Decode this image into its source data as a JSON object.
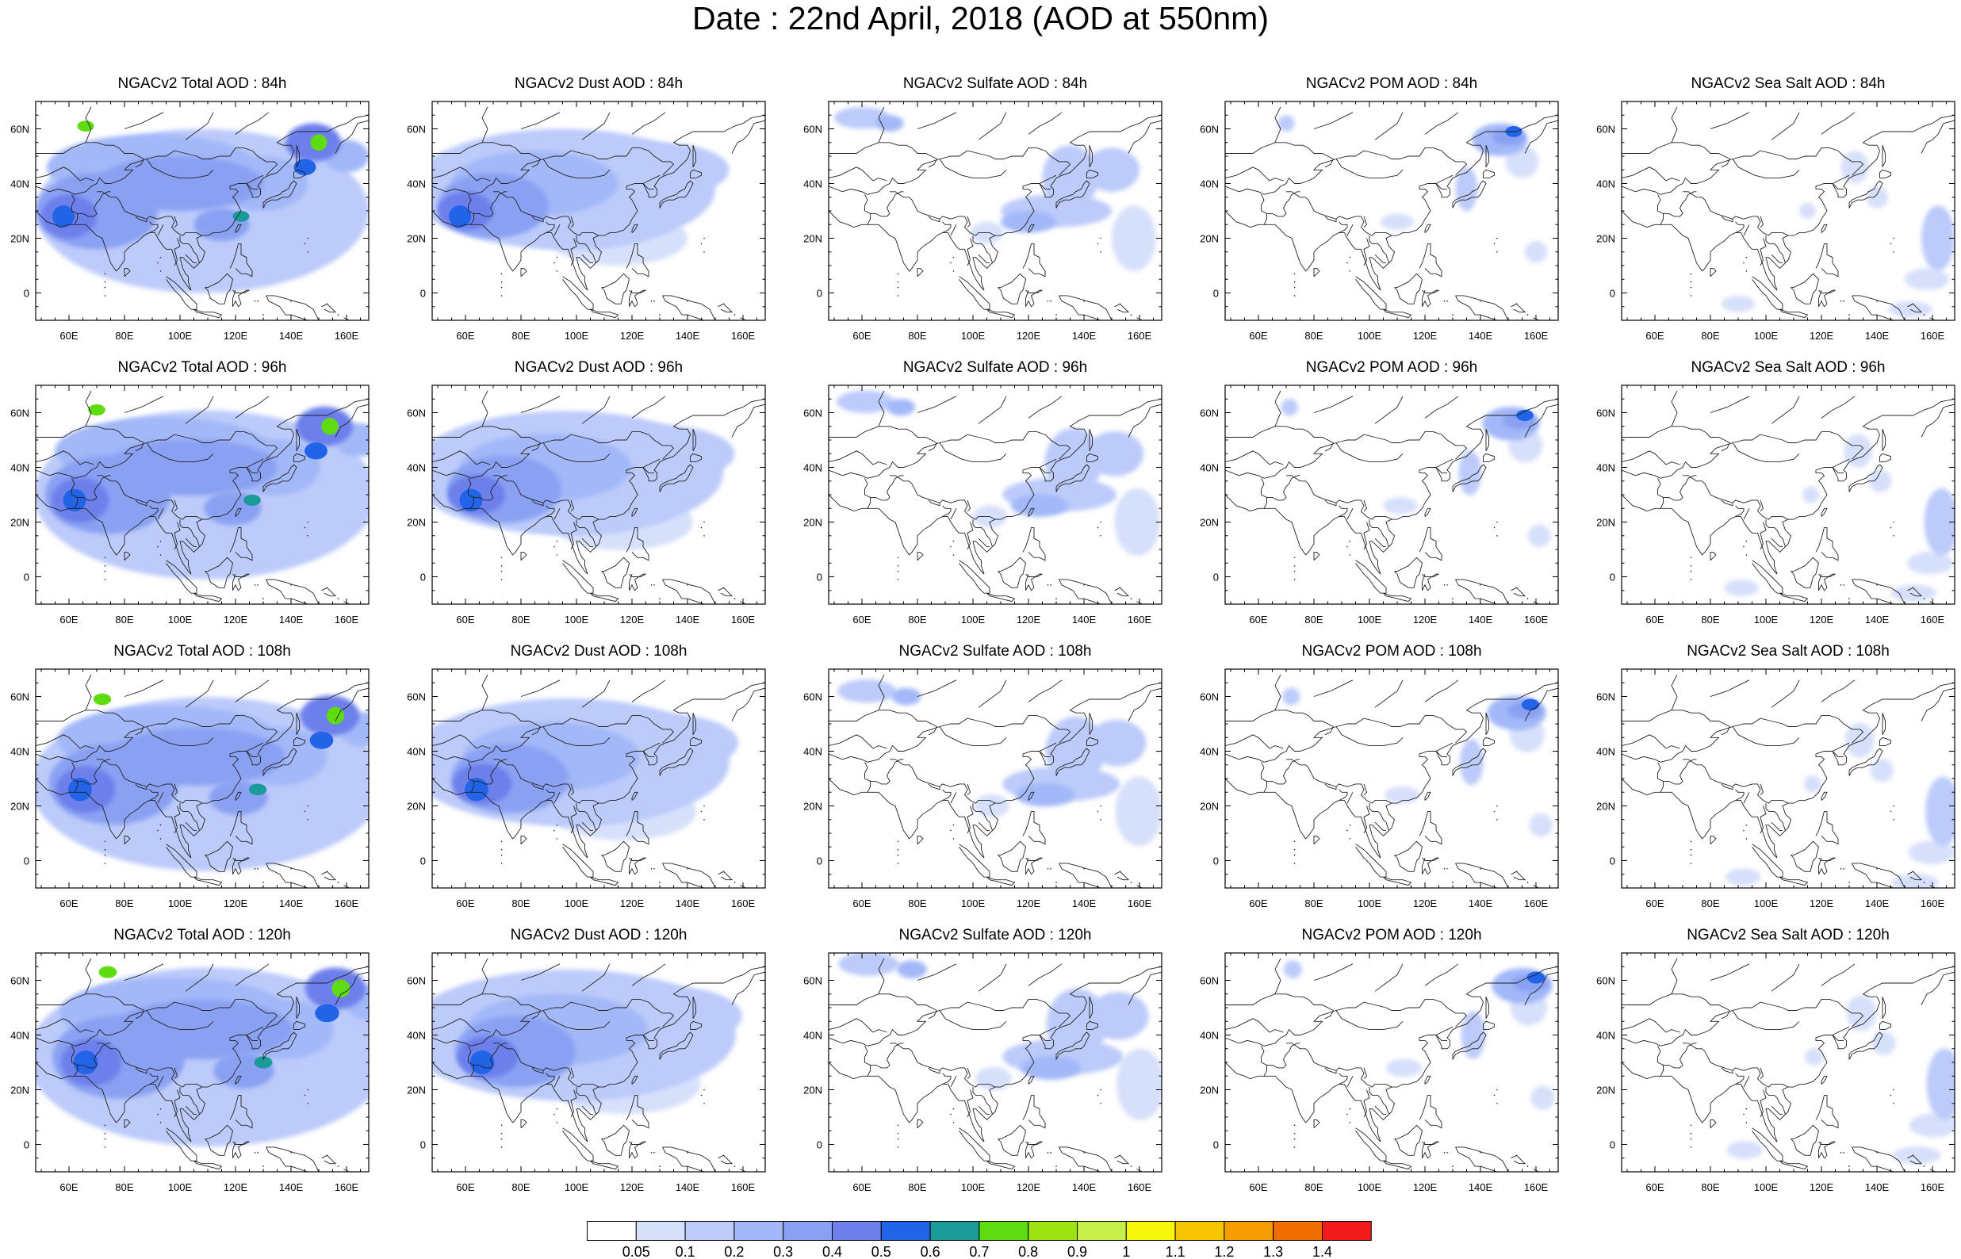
{
  "title": "Date : 22nd April, 2018 (AOD at 550nm)",
  "map_grid": {
    "lon_range": [
      48,
      168
    ],
    "lat_range": [
      -10,
      70
    ],
    "lon_ticks": [
      "60E",
      "80E",
      "100E",
      "120E",
      "140E",
      "160E"
    ],
    "lat_ticks": [
      "60N",
      "40N",
      "20N",
      "0"
    ]
  },
  "panels": [
    [
      {
        "title": "NGACv2 Total AOD : 84h",
        "species": "total",
        "hour": 84
      },
      {
        "title": "NGACv2 Dust AOD : 84h",
        "species": "dust",
        "hour": 84
      },
      {
        "title": "NGACv2 Sulfate AOD : 84h",
        "species": "sulfate",
        "hour": 84
      },
      {
        "title": "NGACv2 POM AOD : 84h",
        "species": "pom",
        "hour": 84
      },
      {
        "title": "NGACv2 Sea Salt AOD : 84h",
        "species": "seasalt",
        "hour": 84
      }
    ],
    [
      {
        "title": "NGACv2 Total AOD : 96h",
        "species": "total",
        "hour": 96
      },
      {
        "title": "NGACv2 Dust AOD : 96h",
        "species": "dust",
        "hour": 96
      },
      {
        "title": "NGACv2 Sulfate AOD : 96h",
        "species": "sulfate",
        "hour": 96
      },
      {
        "title": "NGACv2 POM AOD : 96h",
        "species": "pom",
        "hour": 96
      },
      {
        "title": "NGACv2 Sea Salt AOD : 96h",
        "species": "seasalt",
        "hour": 96
      }
    ],
    [
      {
        "title": "NGACv2 Total AOD : 108h",
        "species": "total",
        "hour": 108
      },
      {
        "title": "NGACv2 Dust AOD : 108h",
        "species": "dust",
        "hour": 108
      },
      {
        "title": "NGACv2 Sulfate AOD : 108h",
        "species": "sulfate",
        "hour": 108
      },
      {
        "title": "NGACv2 POM AOD : 108h",
        "species": "pom",
        "hour": 108
      },
      {
        "title": "NGACv2 Sea Salt AOD : 108h",
        "species": "seasalt",
        "hour": 108
      }
    ],
    [
      {
        "title": "NGACv2 Total AOD : 120h",
        "species": "total",
        "hour": 120
      },
      {
        "title": "NGACv2 Dust AOD : 120h",
        "species": "dust",
        "hour": 120
      },
      {
        "title": "NGACv2 Sulfate AOD : 120h",
        "species": "sulfate",
        "hour": 120
      },
      {
        "title": "NGACv2 POM AOD : 120h",
        "species": "pom",
        "hour": 120
      },
      {
        "title": "NGACv2 Sea Salt  AOD : 120h",
        "species": "seasalt",
        "hour": 120
      }
    ]
  ],
  "colorbar": {
    "labels": [
      "0.05",
      "0.1",
      "0.2",
      "0.3",
      "0.4",
      "0.5",
      "0.6",
      "0.7",
      "0.8",
      "0.9",
      "1",
      "1.1",
      "1.2",
      "1.3",
      "1.4"
    ],
    "colors": [
      "#ffffff",
      "#d7e0fb",
      "#bccbfa",
      "#a3b8f8",
      "#8aa1f3",
      "#6c7feb",
      "#2164e8",
      "#1b9a9a",
      "#5fdb12",
      "#9de412",
      "#c6ef4a",
      "#f7f70c",
      "#f5c500",
      "#f59d00",
      "#f26d00",
      "#f21a1a"
    ]
  },
  "land_color": "#222222"
}
